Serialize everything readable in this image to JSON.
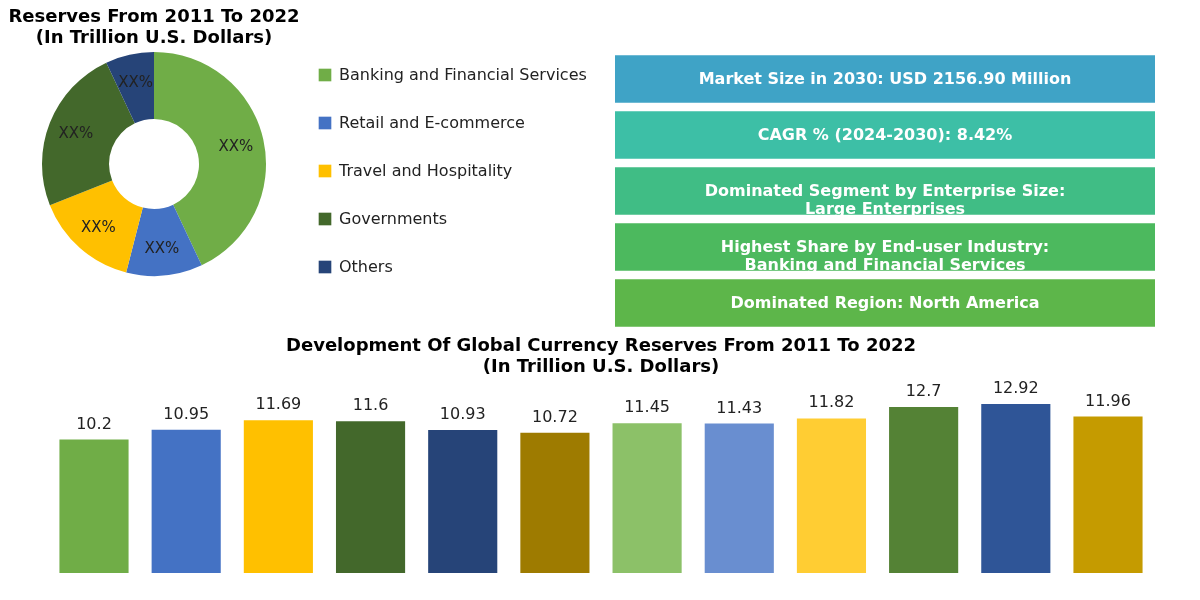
{
  "chart_data": [
    {
      "type": "donut",
      "title": "Reserves From 2011 To 2022",
      "subtitle": "(In Trillion U.S. Dollars)",
      "categories": [
        "Banking and Financial Services",
        "Retail and E-commerce",
        "Travel and Hospitality",
        "Governments",
        "Others"
      ],
      "values": [
        43,
        11,
        15,
        24,
        7
      ],
      "colors": [
        "#70ad47",
        "#4472c4",
        "#ffc000",
        "#43682b",
        "#264478"
      ],
      "value_labels": [
        "XX%",
        "XX%",
        "XX%",
        "XX%",
        "XX%"
      ],
      "legend": "right"
    },
    {
      "type": "other",
      "annotations": [
        "Market Size in 2030: USD 2156.90 Million",
        "CAGR % (2024-2030): 8.42%",
        "Dominated Segment by Enterprise Size:\nLarge Enterprises",
        "Highest Share by End-user Industry:\nBanking and Financial Services",
        "Dominated Region: North America"
      ],
      "colors": [
        "#3fa3c6",
        "#3dbfa6",
        "#40bd85",
        "#4cb95e",
        "#5db64a"
      ]
    },
    {
      "type": "bar",
      "title": "Development Of Global Currency Reserves From 2011 To 2022",
      "subtitle": "(In Trillion U.S. Dollars)",
      "categories": [
        null,
        null,
        null,
        null,
        null,
        null,
        null,
        null,
        null,
        null,
        null,
        null
      ],
      "values": [
        10.2,
        10.95,
        11.69,
        11.6,
        10.93,
        10.72,
        11.45,
        11.43,
        11.82,
        12.7,
        12.92,
        11.96
      ],
      "colors": [
        "#70ad47",
        "#4472c4",
        "#ffc000",
        "#43682b",
        "#264478",
        "#9e7b00",
        "#8cc168",
        "#698ed0",
        "#ffcd33",
        "#548235",
        "#2f5597",
        "#c59b00"
      ],
      "data_labels": true,
      "tick_labels": false
    }
  ]
}
